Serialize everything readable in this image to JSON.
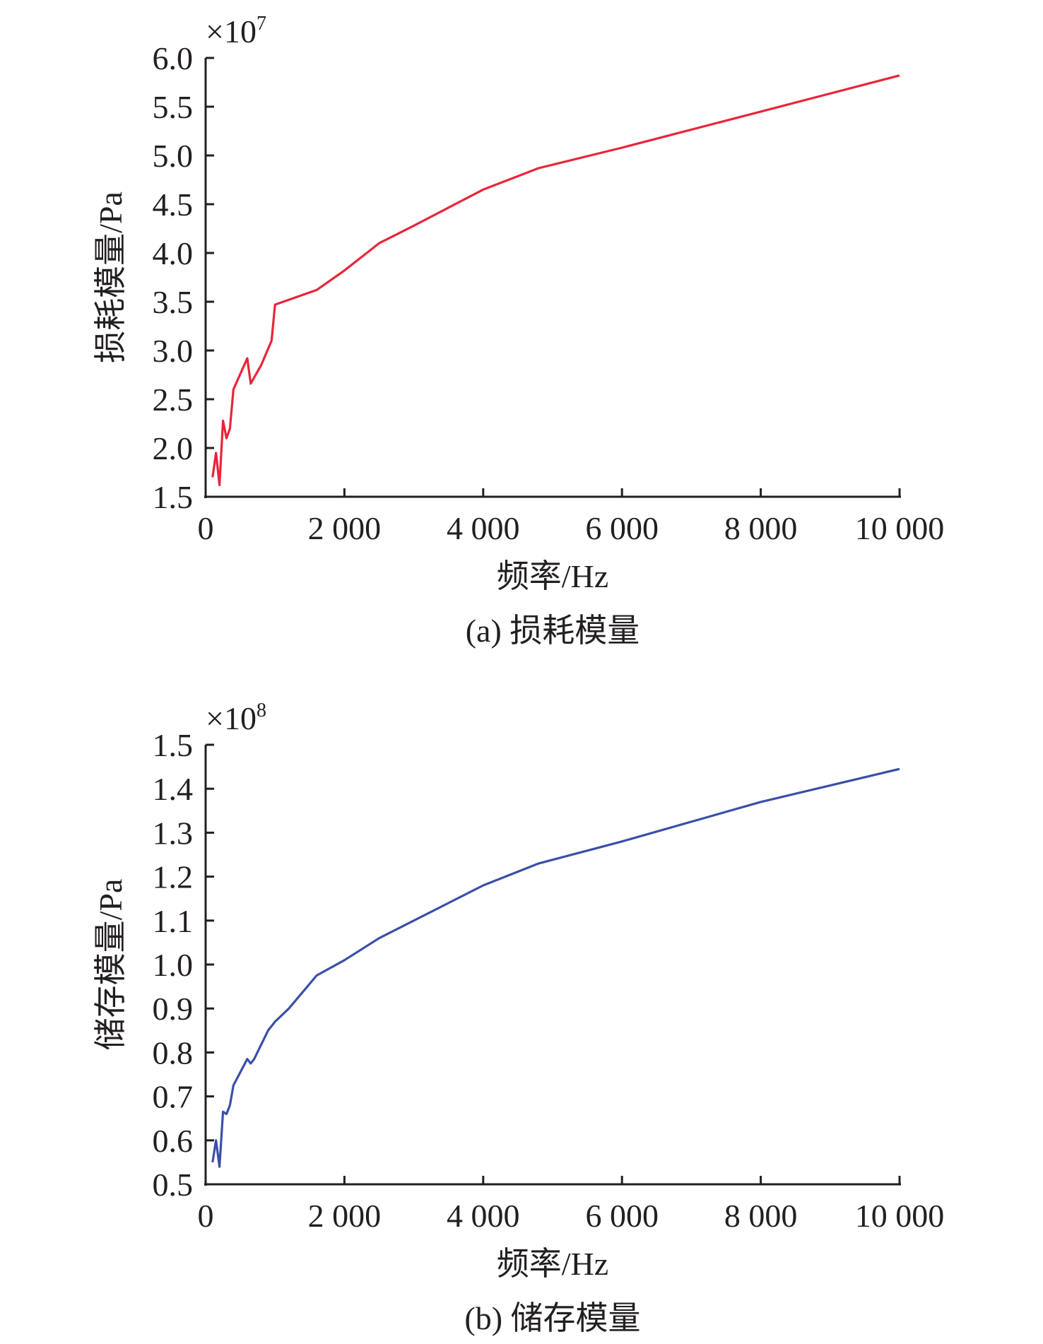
{
  "chart_data": [
    {
      "type": "line",
      "title": "",
      "caption": "(a) 损耗模量",
      "xlabel": "频率/Hz",
      "ylabel": "损耗模量/Pa",
      "multiplier": "×10",
      "exponent": "7",
      "xlim": [
        0,
        10000
      ],
      "ylim": [
        1.5,
        6.0
      ],
      "xticks": [
        0,
        2000,
        4000,
        6000,
        8000,
        10000
      ],
      "xtick_labels": [
        "0",
        "2 000",
        "4 000",
        "6 000",
        "8 000",
        "10 000"
      ],
      "yticks": [
        1.5,
        2.0,
        2.5,
        3.0,
        3.5,
        4.0,
        4.5,
        5.0,
        5.5,
        6.0
      ],
      "ytick_labels": [
        "1.5",
        "2.0",
        "2.5",
        "3.0",
        "3.5",
        "4.0",
        "4.5",
        "5.0",
        "5.5",
        "6.0"
      ],
      "color": "#e8253a",
      "series": [
        {
          "name": "损耗模量",
          "x": [
            100,
            150,
            200,
            250,
            300,
            350,
            400,
            600,
            650,
            800,
            950,
            1000,
            1600,
            2000,
            2500,
            3000,
            4000,
            4800,
            6000,
            8000,
            10000
          ],
          "y": [
            1.7,
            1.95,
            1.62,
            2.28,
            2.1,
            2.2,
            2.6,
            2.92,
            2.66,
            2.85,
            3.1,
            3.47,
            3.62,
            3.82,
            4.1,
            4.28,
            4.65,
            4.87,
            5.08,
            5.45,
            5.82
          ]
        }
      ]
    },
    {
      "type": "line",
      "title": "",
      "caption": "(b) 储存模量",
      "xlabel": "频率/Hz",
      "ylabel": "储存模量/Pa",
      "multiplier": "×10",
      "exponent": "8",
      "xlim": [
        0,
        10000
      ],
      "ylim": [
        0.5,
        1.5
      ],
      "xticks": [
        0,
        2000,
        4000,
        6000,
        8000,
        10000
      ],
      "xtick_labels": [
        "0",
        "2 000",
        "4 000",
        "6 000",
        "8 000",
        "10 000"
      ],
      "yticks": [
        0.5,
        0.6,
        0.7,
        0.8,
        0.9,
        1.0,
        1.1,
        1.2,
        1.3,
        1.4,
        1.5
      ],
      "ytick_labels": [
        "0.5",
        "0.6",
        "0.7",
        "0.8",
        "0.9",
        "1.0",
        "1.1",
        "1.2",
        "1.3",
        "1.4",
        "1.5"
      ],
      "color": "#3a4fa8",
      "series": [
        {
          "name": "储存模量",
          "x": [
            100,
            150,
            200,
            250,
            300,
            350,
            400,
            600,
            650,
            700,
            900,
            1000,
            1200,
            1600,
            2000,
            2500,
            3000,
            4000,
            4800,
            6000,
            8000,
            10000
          ],
          "y": [
            0.55,
            0.6,
            0.54,
            0.665,
            0.66,
            0.68,
            0.725,
            0.785,
            0.775,
            0.785,
            0.85,
            0.87,
            0.9,
            0.975,
            1.01,
            1.06,
            1.1,
            1.18,
            1.23,
            1.28,
            1.37,
            1.445
          ]
        }
      ]
    }
  ]
}
